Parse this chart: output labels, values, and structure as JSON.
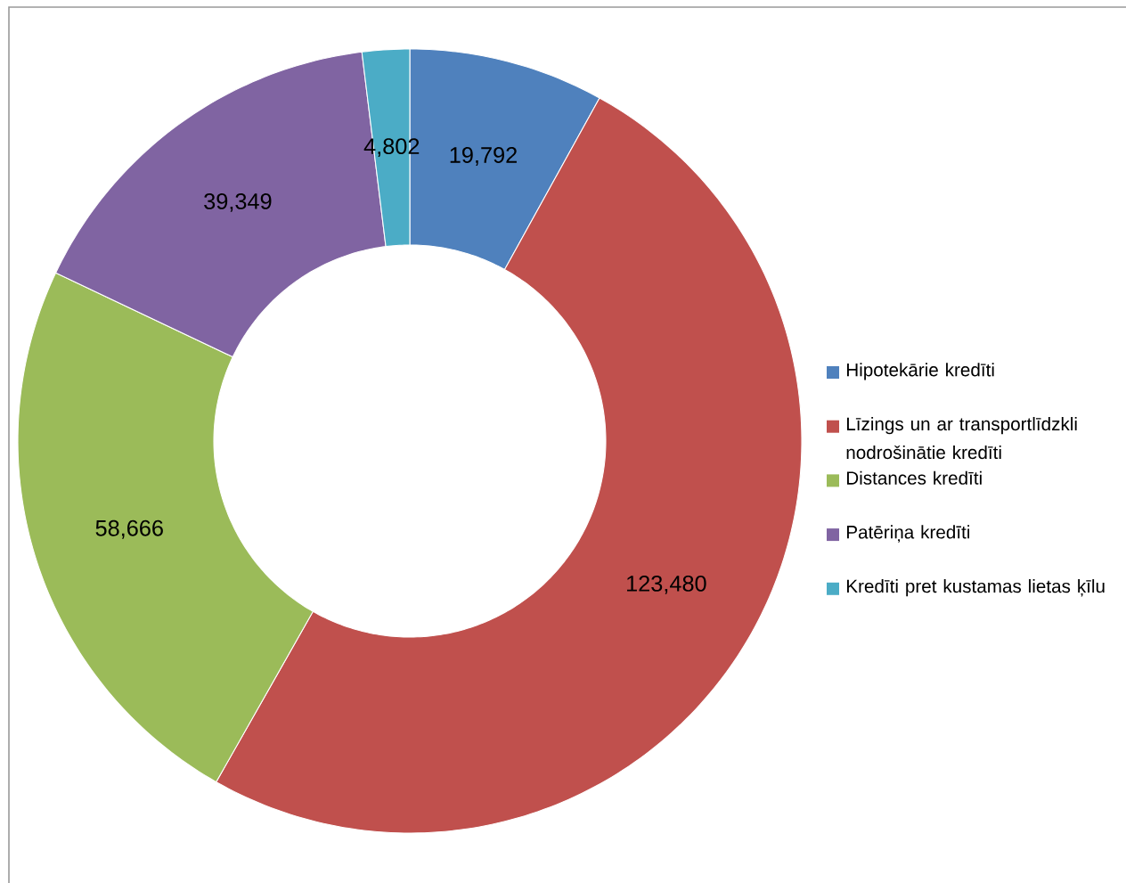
{
  "chart_data": {
    "type": "donut",
    "categories": [
      "Hipotekārie kredīti",
      "Līzings un ar transportlīdzkli nodrošinātie kredīti",
      "Distances kredīti",
      "Patēriņa kredīti",
      "Kredīti pret kustamas lietas ķīlu"
    ],
    "values": [
      19792,
      123480,
      58666,
      39349,
      4802
    ],
    "colors": [
      "#4f81bd",
      "#c0504d",
      "#9bbb59",
      "#8064a2",
      "#4bacc6"
    ],
    "value_labels": [
      "19,792",
      "123,480",
      "58,666",
      "39,349",
      "4,802"
    ],
    "legend": "right"
  }
}
